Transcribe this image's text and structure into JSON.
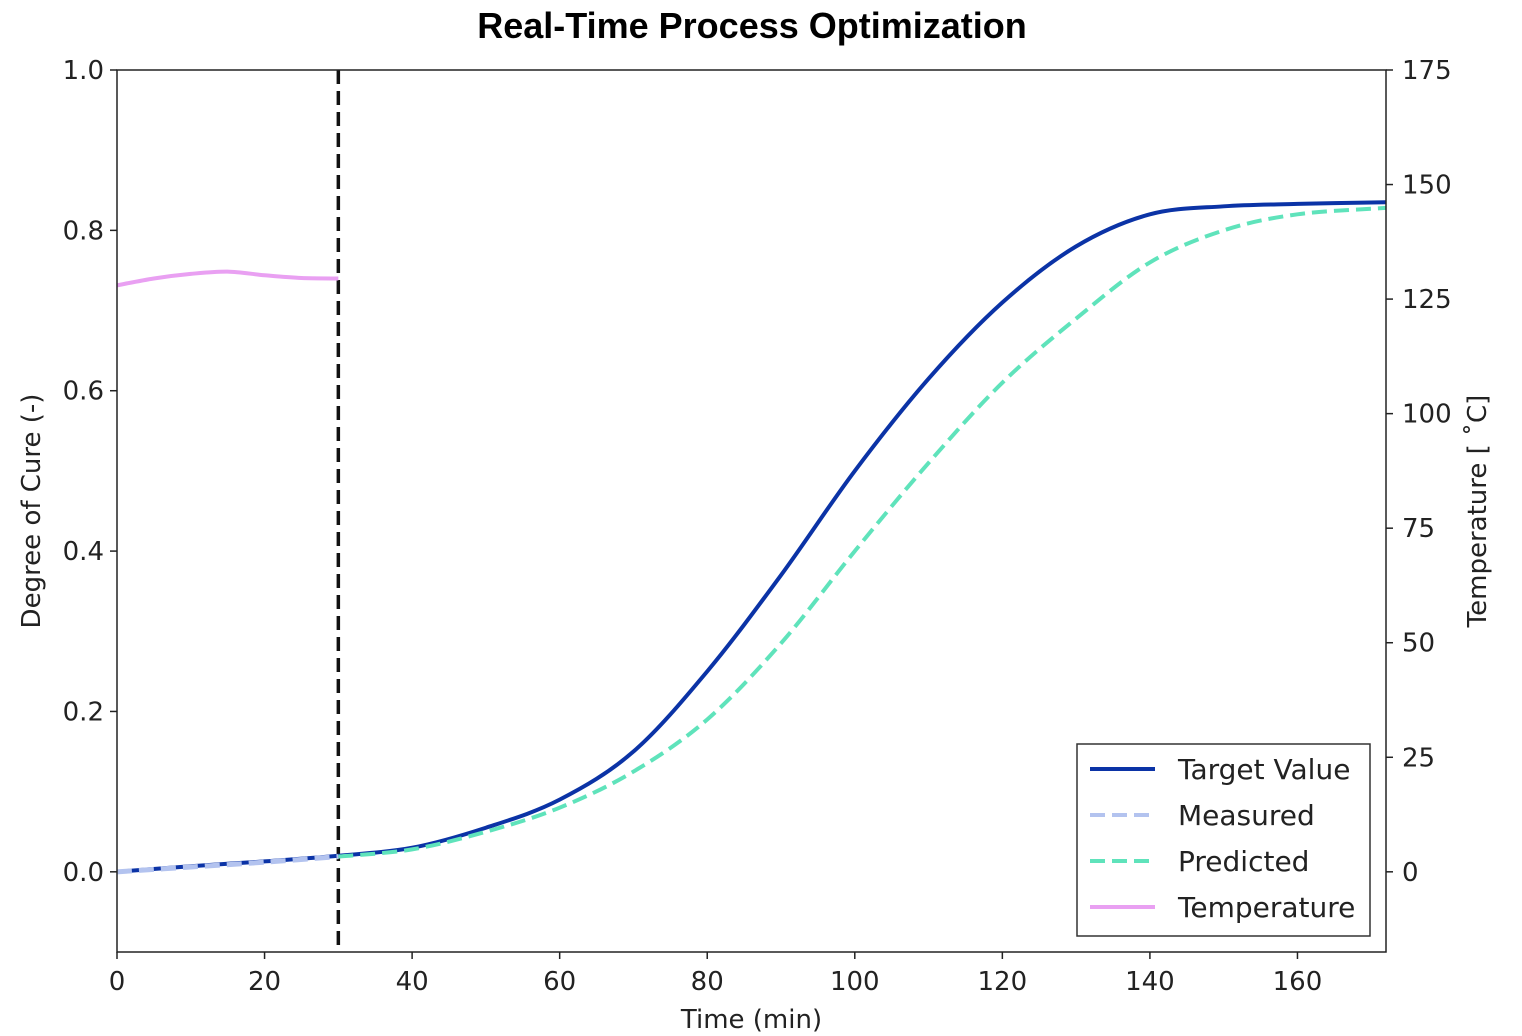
{
  "chart_data": {
    "type": "line",
    "title": "Real-Time Process Optimization",
    "xlabel": "Time (min)",
    "ylabel": "Degree of Cure (-)",
    "y2label": "Temperature [ ˚C]",
    "xlim": [
      0,
      172
    ],
    "ylim": [
      -0.1,
      1.0
    ],
    "y2lim": [
      -17.5,
      175
    ],
    "x_ticks": [
      0,
      20,
      40,
      60,
      80,
      100,
      120,
      140,
      160
    ],
    "y_ticks": [
      0.0,
      0.2,
      0.4,
      0.6,
      0.8,
      1.0
    ],
    "y_tick_labels": [
      "0.0",
      "0.2",
      "0.4",
      "0.6",
      "0.8",
      "1.0"
    ],
    "y2_ticks": [
      0,
      25,
      50,
      75,
      100,
      125,
      150,
      175
    ],
    "current_time_marker": 30,
    "grid": false,
    "legend_position": "lower-right",
    "series": [
      {
        "name": "Target Value",
        "axis": "left",
        "style": "solid",
        "color": "#0b33a6",
        "x": [
          0,
          10,
          20,
          30,
          40,
          50,
          60,
          70,
          80,
          90,
          100,
          110,
          120,
          130,
          140,
          150,
          160,
          172
        ],
        "y": [
          0.0,
          0.007,
          0.013,
          0.02,
          0.03,
          0.055,
          0.09,
          0.15,
          0.25,
          0.37,
          0.5,
          0.615,
          0.71,
          0.78,
          0.82,
          0.83,
          0.833,
          0.835
        ]
      },
      {
        "name": "Measured",
        "axis": "left",
        "style": "dashed",
        "color": "#b3c3ef",
        "x": [
          0,
          10,
          20,
          30
        ],
        "y": [
          0.0,
          0.006,
          0.012,
          0.019
        ]
      },
      {
        "name": "Predicted",
        "axis": "left",
        "style": "dashed",
        "color": "#5fe3bb",
        "x": [
          30,
          40,
          50,
          60,
          70,
          80,
          90,
          100,
          110,
          120,
          130,
          140,
          150,
          160,
          172
        ],
        "y": [
          0.019,
          0.028,
          0.05,
          0.08,
          0.125,
          0.19,
          0.285,
          0.4,
          0.51,
          0.61,
          0.69,
          0.76,
          0.8,
          0.82,
          0.828
        ]
      },
      {
        "name": "Temperature",
        "axis": "right",
        "style": "solid",
        "color": "#e9a0f2",
        "x": [
          0,
          5,
          10,
          15,
          20,
          25,
          30
        ],
        "y": [
          128,
          129.5,
          130.5,
          131,
          130.2,
          129.6,
          129.5
        ]
      }
    ]
  }
}
